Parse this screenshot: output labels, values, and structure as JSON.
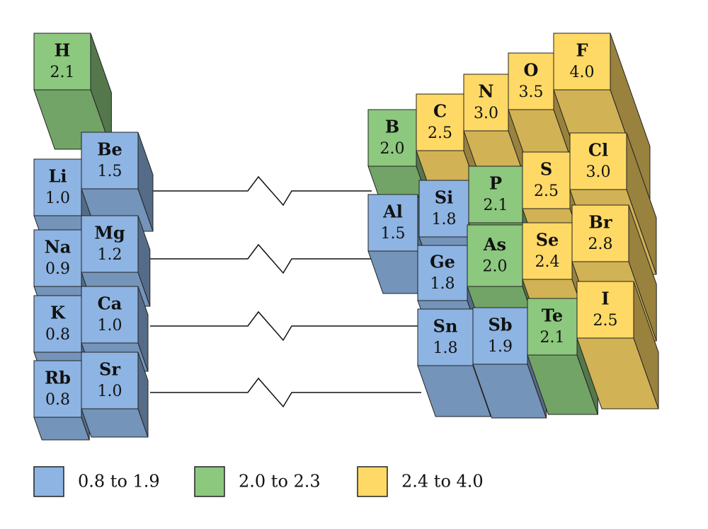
{
  "elements": [
    {
      "symbol": "H",
      "value": "2.1"
    },
    {
      "symbol": "Li",
      "value": "1.0"
    },
    {
      "symbol": "Be",
      "value": "1.5"
    },
    {
      "symbol": "Na",
      "value": "0.9"
    },
    {
      "symbol": "Mg",
      "value": "1.2"
    },
    {
      "symbol": "K",
      "value": "0.8"
    },
    {
      "symbol": "Ca",
      "value": "1.0"
    },
    {
      "symbol": "Rb",
      "value": "0.8"
    },
    {
      "symbol": "Sr",
      "value": "1.0"
    },
    {
      "symbol": "F",
      "value": "4.0"
    },
    {
      "symbol": "O",
      "value": "3.5"
    },
    {
      "symbol": "N",
      "value": "3.0"
    },
    {
      "symbol": "C",
      "value": "2.5"
    },
    {
      "symbol": "B",
      "value": "2.0"
    },
    {
      "symbol": "Cl",
      "value": "3.0"
    },
    {
      "symbol": "S",
      "value": "2.5"
    },
    {
      "symbol": "P",
      "value": "2.1"
    },
    {
      "symbol": "Si",
      "value": "1.8"
    },
    {
      "symbol": "Al",
      "value": "1.5"
    },
    {
      "symbol": "Br",
      "value": "2.8"
    },
    {
      "symbol": "Se",
      "value": "2.4"
    },
    {
      "symbol": "As",
      "value": "2.0"
    },
    {
      "symbol": "Ge",
      "value": "1.8"
    },
    {
      "symbol": "I",
      "value": "2.5"
    },
    {
      "symbol": "Te",
      "value": "2.1"
    },
    {
      "symbol": "Sb",
      "value": "1.9"
    },
    {
      "symbol": "Sn",
      "value": "1.8"
    }
  ],
  "legend": [
    {
      "label": "0.8 to 1.9",
      "color": "#8db4e2"
    },
    {
      "label": "2.0 to 2.3",
      "color": "#8cc87e"
    },
    {
      "label": "2.4 to 4.0",
      "color": "#ffd966"
    }
  ]
}
